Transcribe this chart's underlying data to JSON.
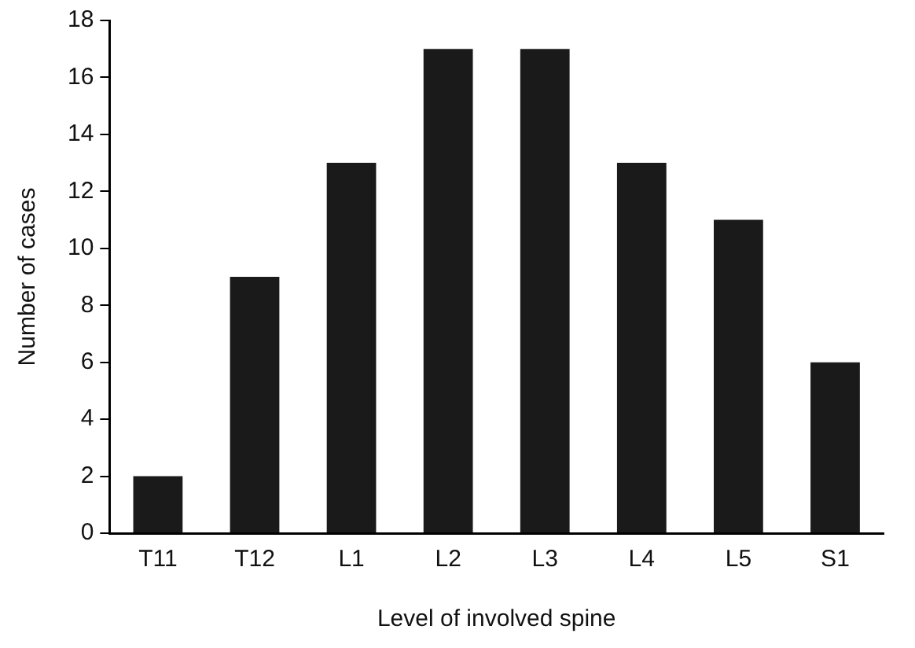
{
  "chart_data": {
    "type": "bar",
    "xlabel": "Level of involved spine",
    "ylabel": "Number of cases",
    "categories": [
      "T11",
      "T12",
      "L1",
      "L2",
      "L3",
      "L4",
      "L5",
      "S1"
    ],
    "values": [
      2,
      9,
      13,
      17,
      17,
      13,
      11,
      6
    ],
    "color": "#1a1a1a",
    "ylim": [
      0,
      18
    ],
    "yticks": [
      0,
      2,
      4,
      6,
      8,
      10,
      12,
      14,
      16,
      18
    ],
    "grid": false,
    "legend": false
  }
}
